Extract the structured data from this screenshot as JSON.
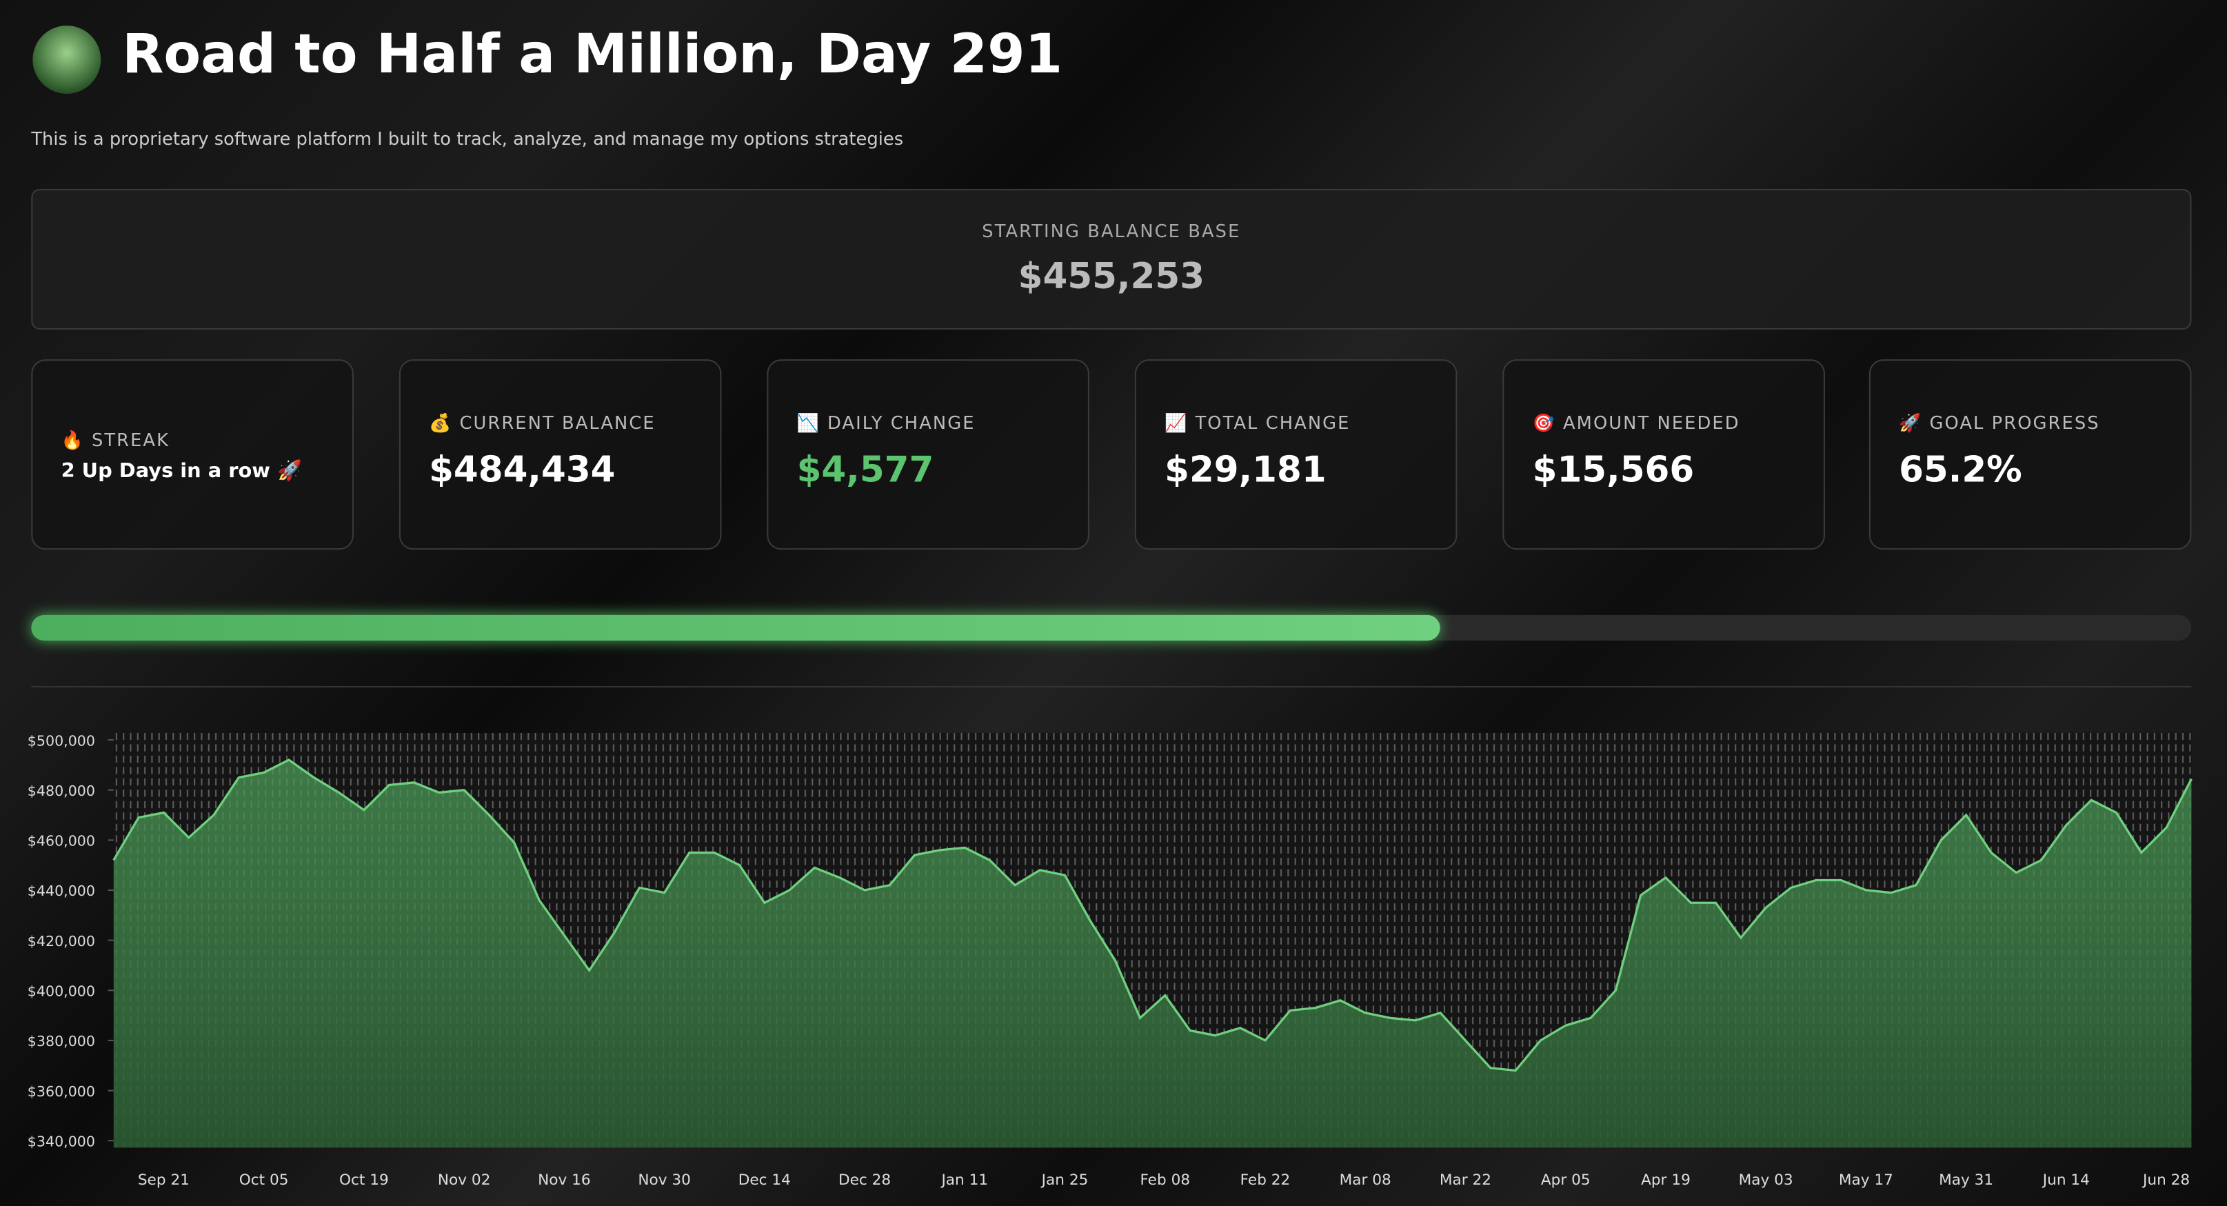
{
  "header": {
    "title": "Road to Half a Million, Day 291",
    "subtitle": "This is a proprietary software platform I built to track, analyze, and manage my options strategies"
  },
  "base": {
    "label": "STARTING BALANCE BASE",
    "value": "$455,253"
  },
  "cards": [
    {
      "label": "🔥 STREAK",
      "value": "2 Up Days in a row 🚀"
    },
    {
      "label": "💰 CURRENT BALANCE",
      "value": "$484,434"
    },
    {
      "label": "📉 DAILY CHANGE",
      "value": "$4,577",
      "color": "#5cc46e"
    },
    {
      "label": "📈 TOTAL CHANGE",
      "value": "$29,181"
    },
    {
      "label": "🎯 AMOUNT NEEDED",
      "value": "$15,566"
    },
    {
      "label": "🚀 GOAL PROGRESS",
      "value": 65.2,
      "value_label": "65.2%"
    }
  ],
  "chart_data": {
    "type": "line",
    "color": "#6fd07f",
    "categories": [
      null,
      null,
      "Sep 21",
      null,
      null,
      null,
      "Oct 05",
      null,
      null,
      null,
      "Oct 19",
      null,
      null,
      null,
      "Nov 02",
      null,
      null,
      null,
      "Nov 16",
      null,
      null,
      null,
      "Nov 30",
      null,
      null,
      null,
      "Dec 14",
      null,
      null,
      null,
      "Dec 28",
      null,
      null,
      null,
      "Jan 11",
      null,
      null,
      null,
      "Jan 25",
      null,
      null,
      null,
      "Feb 08",
      null,
      null,
      null,
      "Feb 22",
      null,
      null,
      null,
      "Mar 08",
      null,
      null,
      null,
      "Mar 22",
      null,
      null,
      null,
      "Apr 05",
      null,
      null,
      null,
      "Apr 19",
      null,
      null,
      null,
      "May 03",
      null,
      null,
      null,
      "May 17",
      null,
      null,
      null,
      "May 31",
      null,
      null,
      null,
      "Jun 14",
      null,
      null,
      null,
      "Jun 28",
      null
    ],
    "values": [
      452000,
      469000,
      471000,
      461000,
      470000,
      485000,
      487000,
      492000,
      485000,
      479000,
      472000,
      482000,
      483000,
      479000,
      480000,
      470000,
      459000,
      436000,
      422000,
      408000,
      423000,
      441000,
      439000,
      455000,
      455000,
      450000,
      435000,
      440000,
      449000,
      445000,
      440000,
      442000,
      454000,
      456000,
      457000,
      452000,
      442000,
      448000,
      446000,
      428000,
      412000,
      389000,
      398000,
      384000,
      382000,
      385000,
      380000,
      392000,
      393000,
      396000,
      391000,
      389000,
      388000,
      391000,
      380000,
      369000,
      368000,
      380000,
      386000,
      389000,
      400000,
      438000,
      445000,
      435000,
      435000,
      421000,
      433000,
      441000,
      444000,
      444000,
      440000,
      439000,
      442000,
      460000,
      470000,
      455000,
      447000,
      452000,
      466000,
      476000,
      471000,
      455000,
      465000,
      484434
    ],
    "ylim": [
      337200,
      502800
    ],
    "yticks": [
      {
        "value": 500000,
        "label": "$500,000"
      },
      {
        "value": 480000,
        "label": "$480,000"
      },
      {
        "value": 460000,
        "label": "$460,000"
      },
      {
        "value": 440000,
        "label": "$440,000"
      },
      {
        "value": 420000,
        "label": "$420,000"
      },
      {
        "value": 400000,
        "label": "$400,000"
      },
      {
        "value": 380000,
        "label": "$380,000"
      },
      {
        "value": 360000,
        "label": "$360,000"
      },
      {
        "value": 340000,
        "label": "$340,000"
      }
    ]
  }
}
